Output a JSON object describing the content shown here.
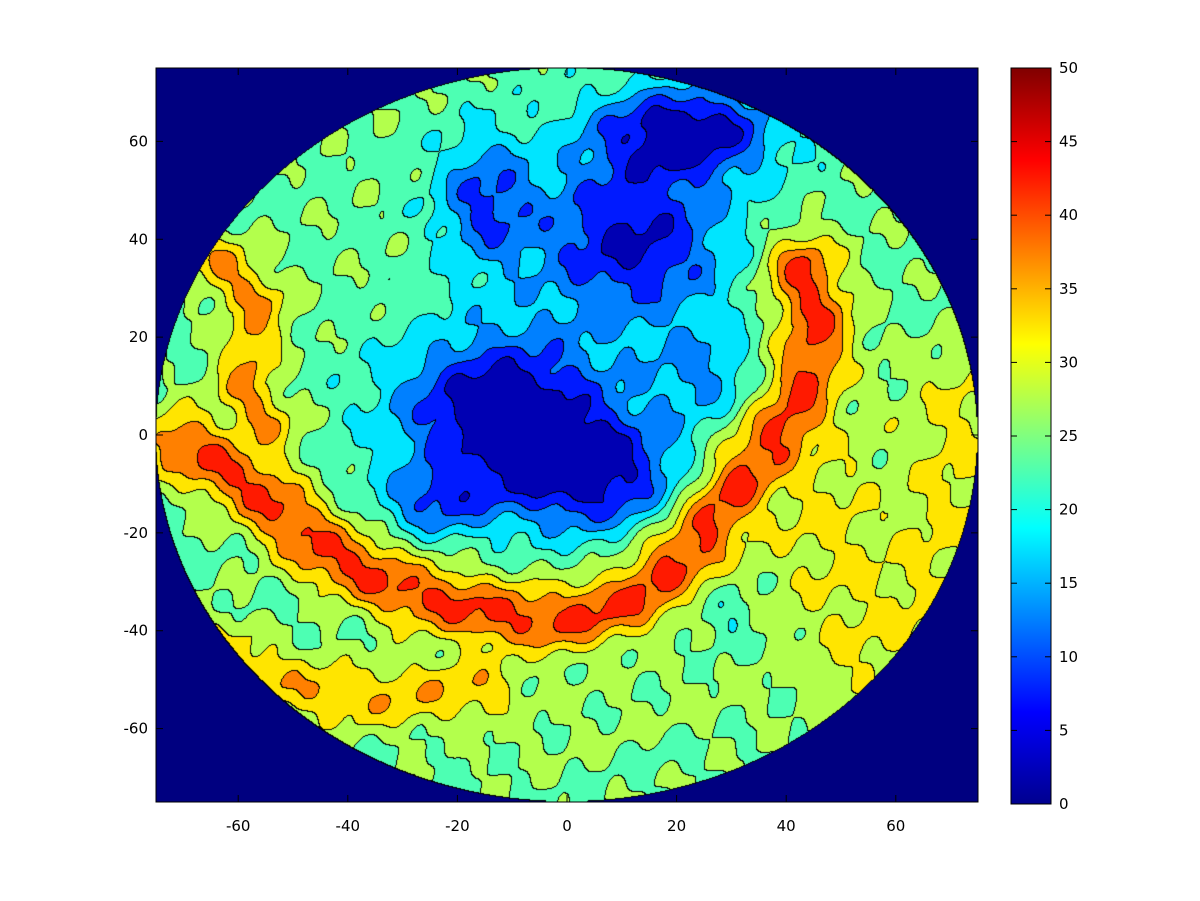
{
  "chart_data": {
    "type": "heatmap",
    "subtype": "filled-contour",
    "title": "",
    "xlabel": "",
    "ylabel": "",
    "xlim": [
      -75,
      75
    ],
    "ylim": [
      -75,
      75
    ],
    "x_ticks": [
      -60,
      -40,
      -20,
      0,
      20,
      40,
      60
    ],
    "y_ticks": [
      60,
      40,
      20,
      0,
      -20,
      -40,
      -60
    ],
    "colorbar": {
      "colormap": "jet",
      "range": [
        0,
        50
      ],
      "ticks": [
        0,
        5,
        10,
        15,
        20,
        25,
        30,
        35,
        40,
        45,
        50
      ]
    },
    "contour_levels": [
      5,
      10,
      15,
      20,
      25,
      30,
      35,
      40,
      45
    ],
    "background_value": 0,
    "disk": {
      "center": [
        0,
        0
      ],
      "radius": 75
    },
    "features": [
      {
        "kind": "low",
        "x": -12,
        "y": 5,
        "sx": 19,
        "sy": 16,
        "amp": -24
      },
      {
        "kind": "low",
        "x": 5,
        "y": -8,
        "sx": 16,
        "sy": 12,
        "amp": -20
      },
      {
        "kind": "low",
        "x": -24,
        "y": -14,
        "sx": 10,
        "sy": 7,
        "amp": -12
      },
      {
        "kind": "low",
        "x": -15,
        "y": 48,
        "sx": 9,
        "sy": 14,
        "amp": -14
      },
      {
        "kind": "low",
        "x": 12,
        "y": 40,
        "sx": 18,
        "sy": 18,
        "amp": -20
      },
      {
        "kind": "low",
        "x": 22,
        "y": 62,
        "sx": 16,
        "sy": 9,
        "amp": -22
      },
      {
        "kind": "low",
        "x": 25,
        "y": 12,
        "sx": 10,
        "sy": 10,
        "amp": -9
      },
      {
        "kind": "low",
        "x": 30,
        "y": -40,
        "sx": 4,
        "sy": 7,
        "amp": -7
      },
      {
        "kind": "low",
        "x": 17,
        "y": -62,
        "sx": 5,
        "sy": 5,
        "amp": -5
      },
      {
        "kind": "high",
        "x": -40,
        "y": -28,
        "sx": 7,
        "sy": 3,
        "amp": 6
      },
      {
        "kind": "high",
        "x": -14,
        "y": -38,
        "sx": 7,
        "sy": 3,
        "amp": 5
      },
      {
        "kind": "high",
        "x": 8,
        "y": -34,
        "sx": 7,
        "sy": 3,
        "amp": 6
      },
      {
        "kind": "high",
        "x": 43,
        "y": 28,
        "sx": 3,
        "sy": 6,
        "amp": 6
      },
      {
        "kind": "high",
        "x": 40,
        "y": -3,
        "sx": 3,
        "sy": 3,
        "amp": 5
      },
      {
        "kind": "high",
        "x": 50,
        "y": -20,
        "sx": 14,
        "sy": 22,
        "amp": 3
      }
    ],
    "ridges": [
      {
        "name": "main-band",
        "peak": 41,
        "width": 5,
        "path": [
          [
            -70,
            -2
          ],
          [
            -58,
            -10
          ],
          [
            -45,
            -23
          ],
          [
            -30,
            -32
          ],
          [
            -12,
            -37
          ],
          [
            0,
            -38
          ],
          [
            12,
            -34
          ],
          [
            24,
            -22
          ],
          [
            33,
            -8
          ],
          [
            42,
            5
          ],
          [
            46,
            22
          ],
          [
            43,
            34
          ]
        ]
      },
      {
        "name": "west-band",
        "peak": 36,
        "width": 4,
        "path": [
          [
            -63,
            35
          ],
          [
            -56,
            26
          ],
          [
            -59,
            10
          ],
          [
            -55,
            2
          ]
        ]
      },
      {
        "name": "south-band",
        "peak": 34,
        "width": 5,
        "path": [
          [
            -66,
            -43
          ],
          [
            -55,
            -50
          ],
          [
            -38,
            -54
          ],
          [
            -15,
            -52
          ]
        ]
      },
      {
        "name": "east-shelf",
        "peak": 31,
        "width": 9,
        "path": [
          [
            45,
            -12
          ],
          [
            52,
            -30
          ],
          [
            55,
            -45
          ],
          [
            62,
            -38
          ],
          [
            70,
            -15
          ],
          [
            72,
            5
          ]
        ]
      },
      {
        "name": "south-rise",
        "peak": 26,
        "width": 8,
        "path": [
          [
            -10,
            -60
          ],
          [
            8,
            -58
          ],
          [
            22,
            -55
          ],
          [
            35,
            -50
          ]
        ]
      }
    ]
  }
}
